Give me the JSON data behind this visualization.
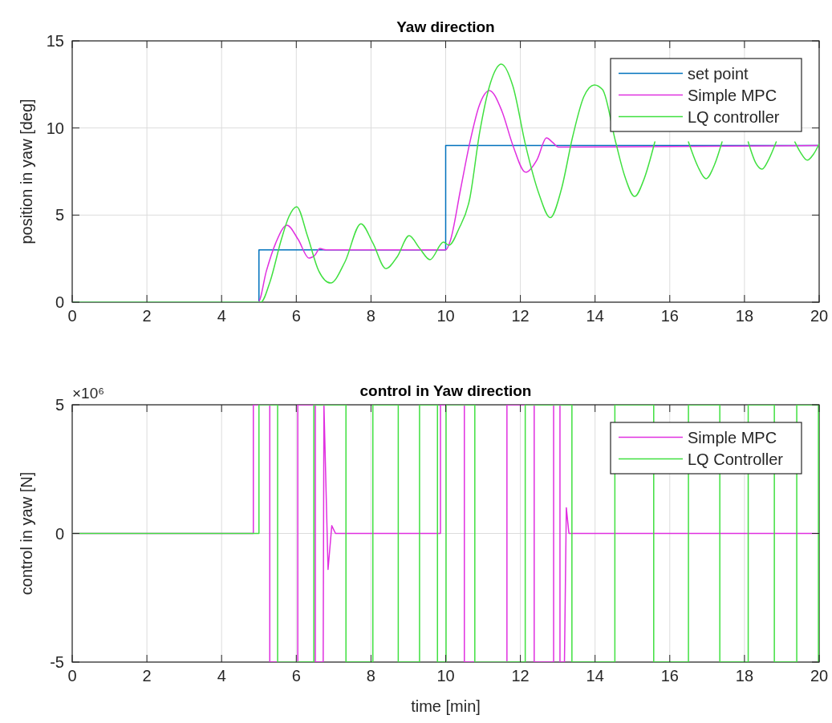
{
  "chart_data": [
    {
      "type": "line",
      "title": "Yaw direction",
      "ylabel": "position in yaw [deg]",
      "xlim": [
        0,
        20
      ],
      "xticks": [
        0,
        2,
        4,
        6,
        8,
        10,
        12,
        14,
        16,
        18,
        20
      ],
      "ylim": [
        0,
        15
      ],
      "yticks": [
        0,
        5,
        10,
        15
      ],
      "grid": true,
      "legend": "top right",
      "series": [
        {
          "name": "set point",
          "type": "step",
          "color": "#0072bd",
          "x": [
            0,
            5,
            10,
            20
          ],
          "values": [
            0,
            3,
            9,
            9
          ]
        },
        {
          "name": "Simple MPC",
          "color": "#e030e0",
          "x": [
            0,
            4.98,
            5.2,
            5.45,
            5.75,
            6.05,
            6.34,
            6.5,
            6.63,
            6.8,
            7.0,
            10,
            10.12,
            10.4,
            10.63,
            10.9,
            11.17,
            11.5,
            11.8,
            12.14,
            12.45,
            12.7,
            12.85,
            13.02,
            20
          ],
          "values": [
            0,
            0,
            1.8,
            3.4,
            4.42,
            3.6,
            2.53,
            2.7,
            3.08,
            3.0,
            3,
            3,
            3.5,
            6.5,
            9,
            11.3,
            12.15,
            11,
            9,
            7.46,
            8.2,
            9.43,
            9.2,
            8.9,
            9
          ]
        },
        {
          "name": "LQ controller",
          "color": "#40e040",
          "x": [
            0,
            5.05,
            5.3,
            5.6,
            5.8,
            6.01,
            6.3,
            6.6,
            6.92,
            7.3,
            7.73,
            8.05,
            8.4,
            8.7,
            9.02,
            9.3,
            9.58,
            9.94,
            10.09,
            10.35,
            10.64,
            10.91,
            11.2,
            11.49,
            11.8,
            12.14,
            12.5,
            12.8,
            13.1,
            13.4,
            13.7,
            13.98,
            14.2,
            14.55,
            14.8,
            15.06,
            15.3,
            15.6,
            16.05,
            16.5,
            16.75,
            16.97,
            17.2,
            17.4,
            17.75,
            18.1,
            18.3,
            18.47,
            18.65,
            18.85,
            19.1,
            19.35,
            19.5,
            19.68,
            19.85,
            20
          ],
          "values": [
            0,
            0,
            1.2,
            3.6,
            4.9,
            5.48,
            3.8,
            1.8,
            1.1,
            2.3,
            4.5,
            3.4,
            1.93,
            2.6,
            3.82,
            3.1,
            2.44,
            3.45,
            3.27,
            4.2,
            5.9,
            9.75,
            12.6,
            13.67,
            12.4,
            9,
            6.2,
            4.85,
            6.5,
            9.5,
            11.8,
            12.47,
            12.2,
            9.2,
            7.2,
            6.07,
            7.0,
            9.2,
            null,
            9.2,
            7.8,
            7.09,
            7.9,
            9.2,
            null,
            9.2,
            8.0,
            7.64,
            8.2,
            9.2,
            null,
            9.2,
            8.6,
            8.15,
            8.5,
            9.08
          ]
        }
      ]
    },
    {
      "type": "line",
      "title": "control in Yaw direction",
      "xlabel": "time [min]",
      "ylabel": "control in yaw [N]",
      "annotations": [
        "×10⁶"
      ],
      "xlim": [
        0,
        20
      ],
      "xticks": [
        0,
        2,
        4,
        6,
        8,
        10,
        12,
        14,
        16,
        18,
        20
      ],
      "ylim": [
        -5,
        5
      ],
      "yticks": [
        -5,
        0,
        5
      ],
      "grid": true,
      "legend": "top right",
      "series": [
        {
          "name": "Simple MPC",
          "color": "#e030e0",
          "x": [
            0,
            4.85,
            4.85,
            5.29,
            5.29,
            6.04,
            6.04,
            6.51,
            6.51,
            6.72,
            6.74,
            6.85,
            6.95,
            7.05,
            9.86,
            9.86,
            10.5,
            10.5,
            11.64,
            11.64,
            12.37,
            12.37,
            12.89,
            12.89,
            13.06,
            13.06,
            13.18,
            13.23,
            13.3,
            13.35,
            20
          ],
          "values": [
            0,
            0,
            5,
            5,
            -5,
            -5,
            5,
            5,
            -5,
            -5,
            5,
            -1.4,
            0.3,
            0,
            0,
            5,
            5,
            -5,
            -5,
            5,
            5,
            -5,
            -5,
            5,
            5,
            -5,
            -5,
            1,
            0,
            0,
            0
          ]
        },
        {
          "name": "LQ Controller",
          "color": "#40e040",
          "x": [
            0,
            5.0,
            5.0,
            5.5,
            5.5,
            6.47,
            6.47,
            7.33,
            7.33,
            8.05,
            8.05,
            8.73,
            8.73,
            9.3,
            9.3,
            9.78,
            9.78,
            10.01,
            10.01,
            10.78,
            10.78,
            12.13,
            12.13,
            13.38,
            13.38,
            14.53,
            14.53,
            15.57,
            15.57,
            16.5,
            16.5,
            17.34,
            17.34,
            18.1,
            18.1,
            18.8,
            18.8,
            19.4,
            19.4,
            19.98,
            19.98,
            20
          ],
          "values": [
            0,
            0,
            5,
            5,
            -5,
            -5,
            5,
            5,
            -5,
            -5,
            5,
            5,
            -5,
            -5,
            5,
            5,
            -5,
            -5,
            5,
            5,
            -5,
            -5,
            5,
            5,
            -5,
            -5,
            5,
            5,
            -5,
            -5,
            5,
            5,
            -5,
            -5,
            5,
            5,
            -5,
            -5,
            5,
            5,
            -5,
            -5
          ]
        }
      ]
    }
  ]
}
